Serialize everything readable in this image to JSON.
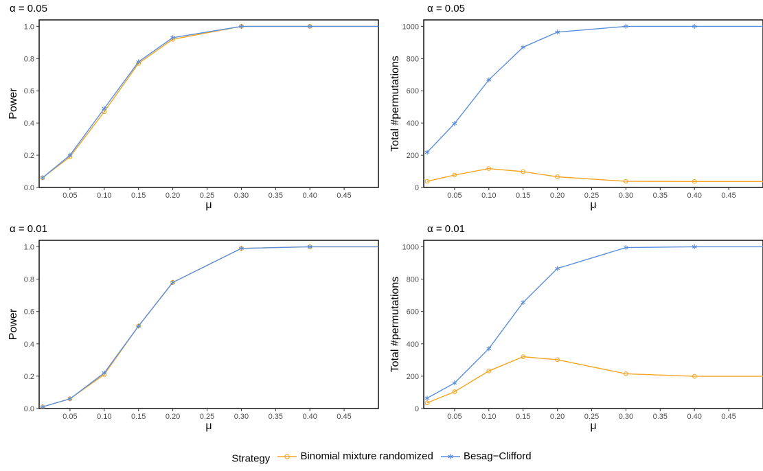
{
  "legend": {
    "title": "Strategy",
    "entries": [
      {
        "label": "Binomial mixture randomized",
        "color": "#f5a623",
        "marker": "circle-icon"
      },
      {
        "label": "Besag−Clifford",
        "color": "#5b8fdd",
        "marker": "asterisk-icon"
      }
    ]
  },
  "chart_data": [
    {
      "type": "line",
      "title": "α = 0.05",
      "xlabel": "μ",
      "ylabel": "Power",
      "xlim": [
        0.005,
        0.5
      ],
      "ylim": [
        0,
        1.04
      ],
      "xticks": [
        "0.05",
        "0.10",
        "0.15",
        "0.20",
        "0.25",
        "0.30",
        "0.35",
        "0.40",
        "0.45"
      ],
      "yticks": [
        "0.0",
        "0.2",
        "0.4",
        "0.6",
        "0.8",
        "1.0"
      ],
      "grid": false,
      "x": [
        0.01,
        0.05,
        0.1,
        0.15,
        0.2,
        0.3,
        0.4,
        0.5
      ],
      "series": [
        {
          "name": "Binomial mixture randomized",
          "values": [
            0.06,
            0.19,
            0.47,
            0.77,
            0.92,
            1.0,
            1.0,
            1.0
          ]
        },
        {
          "name": "Besag−Clifford",
          "values": [
            0.06,
            0.2,
            0.49,
            0.78,
            0.93,
            1.0,
            1.0,
            1.0
          ]
        }
      ]
    },
    {
      "type": "line",
      "title": "α = 0.05",
      "xlabel": "μ",
      "ylabel": "Total #permutations",
      "xlim": [
        0.005,
        0.5
      ],
      "ylim": [
        0,
        1040
      ],
      "xticks": [
        "0.05",
        "0.10",
        "0.15",
        "0.20",
        "0.25",
        "0.30",
        "0.35",
        "0.40",
        "0.45"
      ],
      "yticks": [
        "0",
        "200",
        "400",
        "600",
        "800",
        "1000"
      ],
      "grid": false,
      "x": [
        0.01,
        0.05,
        0.1,
        0.15,
        0.2,
        0.3,
        0.4,
        0.5
      ],
      "series": [
        {
          "name": "Binomial mixture randomized",
          "values": [
            38,
            77,
            117,
            98,
            66,
            38,
            37,
            37
          ]
        },
        {
          "name": "Besag−Clifford",
          "values": [
            218,
            397,
            668,
            871,
            964,
            1000,
            1000,
            1000
          ]
        }
      ]
    },
    {
      "type": "line",
      "title": "α = 0.01",
      "xlabel": "μ",
      "ylabel": "Power",
      "xlim": [
        0.005,
        0.5
      ],
      "ylim": [
        0,
        1.04
      ],
      "xticks": [
        "0.05",
        "0.10",
        "0.15",
        "0.20",
        "0.25",
        "0.30",
        "0.35",
        "0.40",
        "0.45"
      ],
      "yticks": [
        "0.0",
        "0.2",
        "0.4",
        "0.6",
        "0.8",
        "1.0"
      ],
      "grid": false,
      "x": [
        0.01,
        0.05,
        0.1,
        0.15,
        0.2,
        0.3,
        0.4,
        0.5
      ],
      "series": [
        {
          "name": "Binomial mixture randomized",
          "values": [
            0.01,
            0.06,
            0.21,
            0.51,
            0.78,
            0.99,
            1.0,
            1.0
          ]
        },
        {
          "name": "Besag−Clifford",
          "values": [
            0.01,
            0.06,
            0.22,
            0.51,
            0.78,
            0.99,
            1.0,
            1.0
          ]
        }
      ]
    },
    {
      "type": "line",
      "title": "α = 0.01",
      "xlabel": "μ",
      "ylabel": "Total #permutations",
      "xlim": [
        0.005,
        0.5
      ],
      "ylim": [
        0,
        1040
      ],
      "xticks": [
        "0.05",
        "0.10",
        "0.15",
        "0.20",
        "0.25",
        "0.30",
        "0.35",
        "0.40",
        "0.45"
      ],
      "yticks": [
        "0",
        "200",
        "400",
        "600",
        "800",
        "1000"
      ],
      "grid": false,
      "x": [
        0.01,
        0.05,
        0.1,
        0.15,
        0.2,
        0.3,
        0.4,
        0.5
      ],
      "series": [
        {
          "name": "Binomial mixture randomized",
          "values": [
            35,
            104,
            232,
            320,
            302,
            215,
            199,
            199
          ]
        },
        {
          "name": "Besag−Clifford",
          "values": [
            64,
            158,
            370,
            656,
            866,
            995,
            1000,
            1000
          ]
        }
      ]
    }
  ]
}
